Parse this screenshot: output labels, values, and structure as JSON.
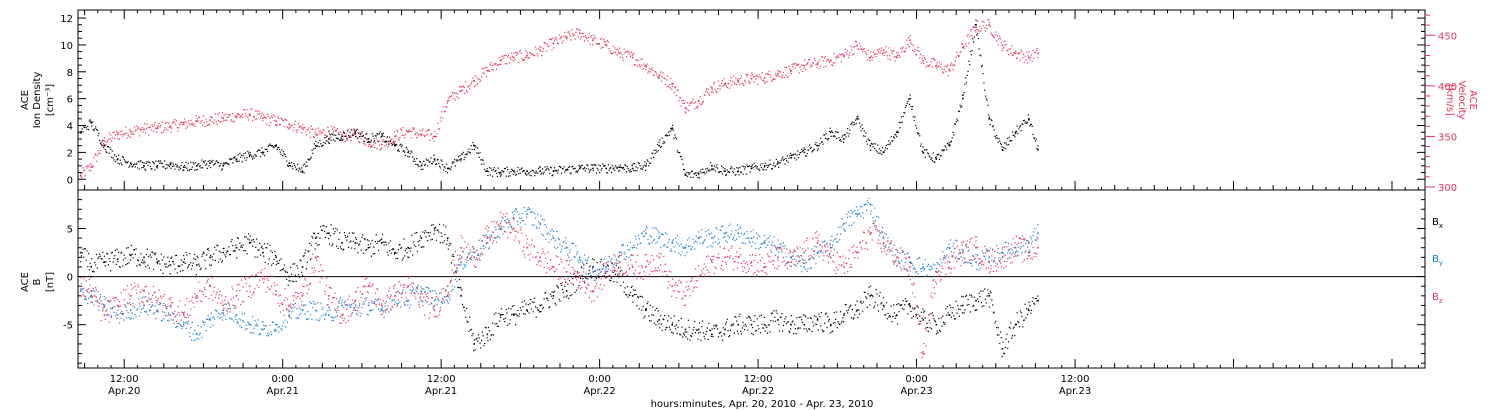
{
  "colors": {
    "density": "#000000",
    "velocity": "#e8315b",
    "bx": "#000000",
    "by": "#1f7fd6",
    "bz": "#e8315b",
    "frame": "#000000"
  },
  "time_axis": {
    "label": "hours:minutes, Apr. 20, 2010 - Apr. 23, 2010",
    "range_hours": [
      8.5,
      110.5
    ],
    "ticks": [
      {
        "hours": 12,
        "time": "12:00",
        "date": "Apr.20"
      },
      {
        "hours": 24,
        "time": "0:00",
        "date": "Apr.21"
      },
      {
        "hours": 36,
        "time": "12:00",
        "date": "Apr.21"
      },
      {
        "hours": 48,
        "time": "0:00",
        "date": "Apr.22"
      },
      {
        "hours": 60,
        "time": "12:00",
        "date": "Apr.22"
      },
      {
        "hours": 72,
        "time": "0:00",
        "date": "Apr.23"
      },
      {
        "hours": 84,
        "time": "12:00",
        "date": "Apr.23"
      }
    ]
  },
  "labels": {
    "density_title_1": "ACE",
    "density_title_2": "Ion Density",
    "density_unit": "[cm⁻³]",
    "velocity_title_1": "ACE",
    "velocity_title_2": "Velocity",
    "velocity_unit": "[km/s]",
    "field_title_1": "ACE",
    "field_title_2": "B",
    "field_unit": "[nT]",
    "bx": "B",
    "bx_sub": "x",
    "by": "B",
    "by_sub": "y",
    "bz": "B",
    "bz_sub": "z"
  },
  "chart_data": [
    {
      "type": "scatter",
      "panel": "top",
      "xlabel": "hours:minutes, Apr. 20, 2010 - Apr. 23, 2010",
      "axes": {
        "left": {
          "label": "ACE Ion Density [cm⁻³]",
          "ylim": [
            -0.8,
            12.6
          ],
          "ticks": [
            0,
            2,
            4,
            6,
            8,
            10,
            12
          ]
        },
        "right": {
          "label": "ACE Velocity [km/s]",
          "ylim": [
            297,
            475
          ],
          "ticks": [
            300,
            350,
            400,
            450
          ]
        }
      },
      "series": [
        {
          "name": "Ion Density",
          "axis": "left",
          "x": [
            8.7,
            9.5,
            10.5,
            11.5,
            12.5,
            13.5,
            14.5,
            15.5,
            16.5,
            17.5,
            18.5,
            19.5,
            20.5,
            21.5,
            22.5,
            23.5,
            24.5,
            25.5,
            26.5,
            27.5,
            28.5,
            29.5,
            30.5,
            31.5,
            32.5,
            33.5,
            34.5,
            35.5,
            36.5,
            37.5,
            38.5,
            39.5,
            40.5,
            41.5,
            42.5,
            43.5,
            44.5,
            45.5,
            46.5,
            47.5,
            48.5,
            49.5,
            50.5,
            51.5,
            52.5,
            53.5,
            54.5,
            55.5,
            56.5,
            57.5,
            58.5,
            59.5,
            60.5,
            61.5,
            62.5,
            63.5,
            64.5,
            65.5,
            66.5,
            67.5,
            68.5,
            69.5,
            70.5,
            71.5,
            72.5,
            73.5,
            74.5,
            75.5,
            76.5,
            77.5,
            78.5,
            79.5,
            80.5,
            81.2
          ],
          "y": [
            3.5,
            4.2,
            2.5,
            1.5,
            1.2,
            1.0,
            1.0,
            1.1,
            0.9,
            1.0,
            1.2,
            1.0,
            1.5,
            1.8,
            2.0,
            2.5,
            1.2,
            0.6,
            2.5,
            3.0,
            3.2,
            3.5,
            3.0,
            3.2,
            2.5,
            2.0,
            1.0,
            1.5,
            0.8,
            1.5,
            2.5,
            0.6,
            0.5,
            0.6,
            0.6,
            0.6,
            0.6,
            0.7,
            0.8,
            0.8,
            0.8,
            0.9,
            0.8,
            1.0,
            2.5,
            3.8,
            0.3,
            0.4,
            1.0,
            0.6,
            0.6,
            0.8,
            1.0,
            1.2,
            1.6,
            2.0,
            2.5,
            3.5,
            3.0,
            4.5,
            2.5,
            2.0,
            3.5,
            6.0,
            2.0,
            1.5,
            2.5,
            6.0,
            11.5,
            4.5,
            2.2,
            3.5,
            4.5,
            2.2
          ]
        },
        {
          "name": "Velocity",
          "axis": "right",
          "x": [
            8.7,
            9.5,
            10.5,
            11.5,
            12.5,
            13.5,
            14.5,
            15.5,
            16.5,
            17.5,
            18.5,
            19.5,
            20.5,
            21.5,
            22.5,
            23.5,
            24.5,
            25.5,
            26.5,
            27.5,
            28.5,
            29.5,
            30.5,
            31.5,
            32.5,
            33.5,
            34.5,
            35.5,
            36.5,
            37.5,
            38.5,
            39.5,
            40.5,
            41.5,
            42.5,
            43.5,
            44.5,
            45.5,
            46.5,
            47.5,
            48.5,
            49.5,
            50.5,
            51.5,
            52.5,
            53.5,
            54.5,
            55.5,
            56.5,
            57.5,
            58.5,
            59.5,
            60.5,
            61.5,
            62.5,
            63.5,
            64.5,
            65.5,
            66.5,
            67.5,
            68.5,
            69.5,
            70.5,
            71.5,
            72.5,
            73.5,
            74.5,
            75.5,
            76.5,
            77.5,
            78.5,
            79.5,
            80.5,
            81.2
          ],
          "y": [
            311,
            320,
            345,
            352,
            355,
            357,
            358,
            360,
            362,
            365,
            366,
            368,
            370,
            372,
            368,
            365,
            362,
            358,
            352,
            355,
            350,
            352,
            345,
            342,
            350,
            355,
            352,
            350,
            385,
            395,
            405,
            415,
            425,
            428,
            430,
            435,
            442,
            448,
            452,
            445,
            440,
            432,
            428,
            420,
            410,
            402,
            378,
            385,
            398,
            402,
            405,
            407,
            408,
            412,
            415,
            420,
            422,
            425,
            430,
            440,
            428,
            435,
            428,
            445,
            425,
            420,
            415,
            438,
            458,
            460,
            440,
            432,
            428,
            432
          ]
        }
      ]
    },
    {
      "type": "scatter",
      "panel": "bottom",
      "xlabel": "hours:minutes, Apr. 20, 2010 - Apr. 23, 2010",
      "ylabel": "ACE B [nT]",
      "ylim": [
        -9.5,
        9.0
      ],
      "yticks": [
        -5,
        0,
        5
      ],
      "zero_line": true,
      "series": [
        {
          "name": "Bx",
          "x": [
            8.7,
            9.5,
            10.5,
            11.5,
            12.5,
            13.5,
            14.5,
            15.5,
            16.5,
            17.5,
            18.5,
            19.5,
            20.5,
            21.5,
            22.5,
            23.5,
            24.5,
            25.5,
            26.5,
            27.5,
            28.5,
            29.5,
            30.5,
            31.5,
            32.5,
            33.5,
            34.5,
            35.5,
            36.5,
            37.5,
            38.5,
            39.5,
            40.5,
            41.5,
            42.5,
            43.5,
            44.5,
            45.5,
            46.5,
            47.5,
            48.5,
            49.5,
            50.5,
            51.5,
            52.5,
            53.5,
            54.5,
            55.5,
            56.5,
            57.5,
            58.5,
            59.5,
            60.5,
            61.5,
            62.5,
            63.5,
            64.5,
            65.5,
            66.5,
            67.5,
            68.5,
            69.5,
            70.5,
            71.5,
            72.5,
            73.5,
            74.5,
            75.5,
            76.5,
            77.5,
            78.5,
            79.5,
            80.5,
            81.2
          ],
          "y": [
            2.5,
            1.0,
            1.5,
            1.8,
            2.2,
            2.0,
            1.5,
            1.2,
            1.5,
            1.2,
            2.0,
            2.5,
            3.0,
            3.5,
            2.5,
            2.0,
            0.0,
            1.0,
            4.0,
            4.5,
            3.5,
            3.5,
            3.0,
            3.5,
            2.5,
            3.0,
            4.0,
            5.0,
            4.0,
            -2.0,
            -7.0,
            -6.0,
            -4.0,
            -4.0,
            -3.5,
            -3.0,
            -2.0,
            -1.5,
            0.0,
            1.0,
            0.5,
            0.0,
            -2.0,
            -3.5,
            -4.5,
            -5.0,
            -5.5,
            -5.5,
            -6.0,
            -5.5,
            -5.0,
            -5.0,
            -5.0,
            -4.5,
            -5.0,
            -5.0,
            -4.5,
            -5.0,
            -4.0,
            -3.5,
            -2.0,
            -3.0,
            -4.0,
            -3.0,
            -4.5,
            -5.0,
            -4.0,
            -3.0,
            -2.5,
            -2.0,
            -7.5,
            -5.0,
            -3.5,
            -2.5
          ]
        },
        {
          "name": "By",
          "x": [
            8.7,
            9.5,
            10.5,
            11.5,
            12.5,
            13.5,
            14.5,
            15.5,
            16.5,
            17.5,
            18.5,
            19.5,
            20.5,
            21.5,
            22.5,
            23.5,
            24.5,
            25.5,
            26.5,
            27.5,
            28.5,
            29.5,
            30.5,
            31.5,
            32.5,
            33.5,
            34.5,
            35.5,
            36.5,
            37.5,
            38.5,
            39.5,
            40.5,
            41.5,
            42.5,
            43.5,
            44.5,
            45.5,
            46.5,
            47.5,
            48.5,
            49.5,
            50.5,
            51.5,
            52.5,
            53.5,
            54.5,
            55.5,
            56.5,
            57.5,
            58.5,
            59.5,
            60.5,
            61.5,
            62.5,
            63.5,
            64.5,
            65.5,
            66.5,
            67.5,
            68.5,
            69.5,
            70.5,
            71.5,
            72.5,
            73.5,
            74.5,
            75.5,
            76.5,
            77.5,
            78.5,
            79.5,
            80.5,
            81.2
          ],
          "y": [
            -1.5,
            -2.0,
            -3.0,
            -4.0,
            -3.5,
            -3.0,
            -3.5,
            -4.0,
            -5.0,
            -6.0,
            -4.5,
            -3.5,
            -4.0,
            -5.0,
            -5.5,
            -5.0,
            -4.0,
            -3.5,
            -3.5,
            -4.0,
            -3.0,
            -3.5,
            -3.0,
            -3.5,
            -2.0,
            -2.5,
            -1.5,
            -2.5,
            -2.0,
            1.5,
            2.5,
            3.5,
            5.0,
            6.0,
            6.5,
            5.5,
            4.0,
            3.0,
            2.0,
            0.5,
            1.0,
            2.5,
            3.0,
            4.5,
            4.0,
            3.5,
            3.0,
            4.0,
            4.0,
            4.5,
            4.5,
            4.0,
            3.5,
            3.0,
            2.0,
            1.0,
            2.5,
            3.0,
            5.5,
            6.5,
            7.5,
            4.0,
            2.0,
            1.5,
            1.0,
            0.5,
            3.0,
            2.5,
            1.5,
            2.0,
            2.5,
            3.0,
            3.5,
            4.5
          ]
        },
        {
          "name": "Bz",
          "x": [
            8.7,
            9.5,
            10.5,
            11.5,
            12.5,
            13.5,
            14.5,
            15.5,
            16.5,
            17.5,
            18.5,
            19.5,
            20.5,
            21.5,
            22.5,
            23.5,
            24.5,
            25.5,
            26.5,
            27.5,
            28.5,
            29.5,
            30.5,
            31.5,
            32.5,
            33.5,
            34.5,
            35.5,
            36.5,
            37.5,
            38.5,
            39.5,
            40.5,
            41.5,
            42.5,
            43.5,
            44.5,
            45.5,
            46.5,
            47.5,
            48.5,
            49.5,
            50.5,
            51.5,
            52.5,
            53.5,
            54.5,
            55.5,
            56.5,
            57.5,
            58.5,
            59.5,
            60.5,
            61.5,
            62.5,
            63.5,
            64.5,
            65.5,
            66.5,
            67.5,
            68.5,
            69.5,
            70.5,
            71.5,
            72.5,
            73.5,
            74.5,
            75.5,
            76.5,
            77.5,
            78.5,
            79.5,
            80.5,
            81.2
          ],
          "y": [
            -1.0,
            -1.5,
            -4.0,
            -3.0,
            -2.0,
            -1.5,
            -2.5,
            -3.0,
            -4.0,
            -2.0,
            -1.0,
            -3.0,
            -2.0,
            -1.0,
            0.0,
            -1.5,
            -3.0,
            -2.0,
            2.0,
            -2.0,
            -4.0,
            -2.5,
            -1.0,
            -3.0,
            -2.0,
            -1.0,
            -2.5,
            -3.5,
            -1.0,
            3.0,
            2.0,
            4.0,
            5.5,
            5.0,
            3.0,
            2.0,
            1.0,
            0.5,
            0.0,
            -1.5,
            0.5,
            1.5,
            1.0,
            1.0,
            2.0,
            -1.0,
            -2.0,
            0.0,
            1.5,
            2.0,
            2.0,
            1.5,
            1.0,
            2.0,
            1.5,
            2.5,
            3.5,
            2.0,
            1.0,
            2.5,
            4.5,
            3.5,
            2.0,
            1.0,
            -8.0,
            0.5,
            1.5,
            2.5,
            3.0,
            1.5,
            2.0,
            3.0,
            2.5,
            3.0
          ]
        }
      ]
    }
  ]
}
